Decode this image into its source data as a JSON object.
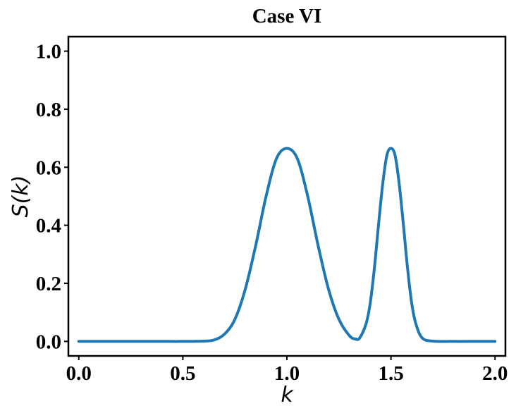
{
  "chart_data": {
    "type": "line",
    "title": "Case VI",
    "xlabel": "k",
    "ylabel": "S(k)",
    "xlim": [
      -0.05,
      2.05
    ],
    "ylim": [
      -0.05,
      1.05
    ],
    "xticks": [
      0.0,
      0.5,
      1.0,
      1.5,
      2.0
    ],
    "xtick_labels": [
      "0.0",
      "0.5",
      "1.0",
      "1.5",
      "2.0"
    ],
    "yticks": [
      0.0,
      0.2,
      0.4,
      0.6,
      0.8,
      1.0
    ],
    "ytick_labels": [
      "0.0",
      "0.2",
      "0.4",
      "0.6",
      "0.8",
      "1.0"
    ],
    "grid": false,
    "series": [
      {
        "color": "#1f77b4",
        "x": [
          0.0,
          0.1,
          0.2,
          0.3,
          0.4,
          0.5,
          0.6,
          0.65,
          0.7,
          0.75,
          0.8,
          0.85,
          0.9,
          0.95,
          1.0,
          1.05,
          1.1,
          1.15,
          1.2,
          1.25,
          1.3,
          1.33,
          1.35,
          1.38,
          1.4,
          1.42,
          1.44,
          1.46,
          1.48,
          1.5,
          1.52,
          1.54,
          1.56,
          1.58,
          1.6,
          1.62,
          1.65,
          1.7,
          1.8,
          1.9,
          2.0
        ],
        "y": [
          0.0,
          0.0,
          0.0,
          0.0,
          0.0,
          0.0,
          0.001,
          0.005,
          0.025,
          0.076,
          0.18,
          0.33,
          0.5,
          0.63,
          0.665,
          0.63,
          0.5,
          0.33,
          0.18,
          0.076,
          0.02,
          0.008,
          0.012,
          0.06,
          0.13,
          0.25,
          0.4,
          0.54,
          0.64,
          0.665,
          0.64,
          0.54,
          0.4,
          0.25,
          0.13,
          0.06,
          0.012,
          0.001,
          0.0,
          0.0,
          0.0
        ]
      }
    ]
  }
}
